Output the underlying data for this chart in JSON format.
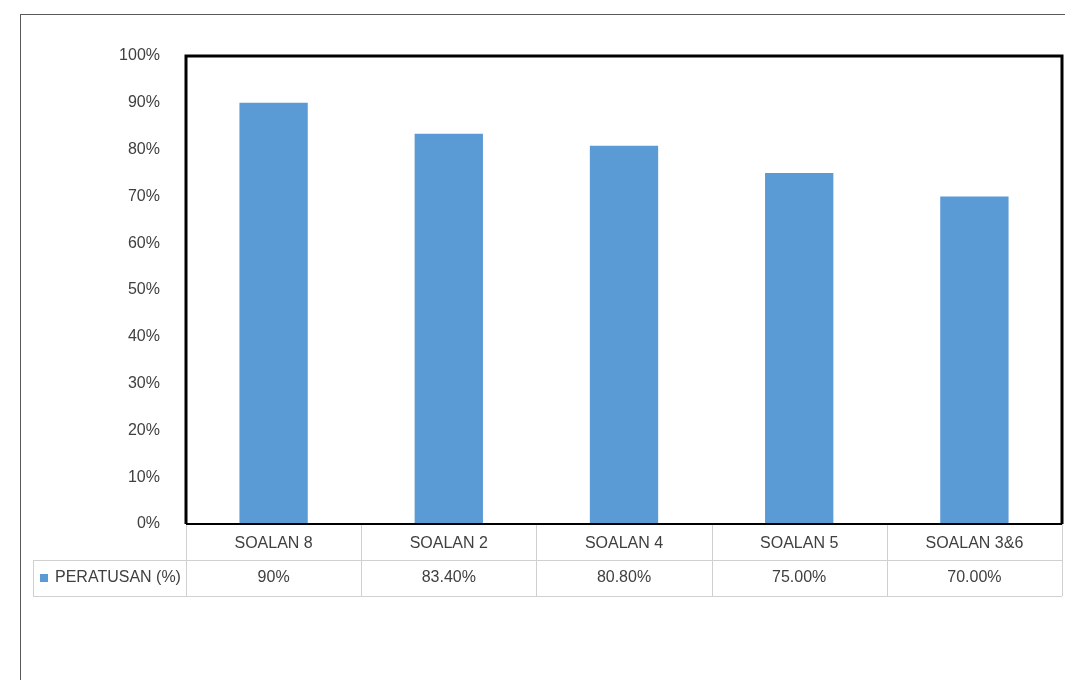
{
  "chart_data": {
    "type": "bar",
    "categories": [
      "SOALAN 8",
      "SOALAN 2",
      "SOALAN 4",
      "SOALAN 5",
      "SOALAN 3&6"
    ],
    "series": [
      {
        "name": "PERATUSAN (%)",
        "color": "#5b9bd5",
        "values": [
          90,
          83.4,
          80.8,
          75,
          70
        ],
        "value_labels": [
          "90%",
          "83.40%",
          "80.80%",
          "75.00%",
          "70.00%"
        ]
      }
    ],
    "ylim": [
      0,
      100
    ],
    "yticks": [
      {
        "value": 0,
        "label": "0%"
      },
      {
        "value": 10,
        "label": "10%"
      },
      {
        "value": 20,
        "label": "20%"
      },
      {
        "value": 30,
        "label": "30%"
      },
      {
        "value": 40,
        "label": "40%"
      },
      {
        "value": 50,
        "label": "50%"
      },
      {
        "value": 60,
        "label": "60%"
      },
      {
        "value": 70,
        "label": "70%"
      },
      {
        "value": 80,
        "label": "80%"
      },
      {
        "value": 90,
        "label": "90%"
      },
      {
        "value": 100,
        "label": "100%"
      }
    ],
    "legend": "bottom left"
  }
}
